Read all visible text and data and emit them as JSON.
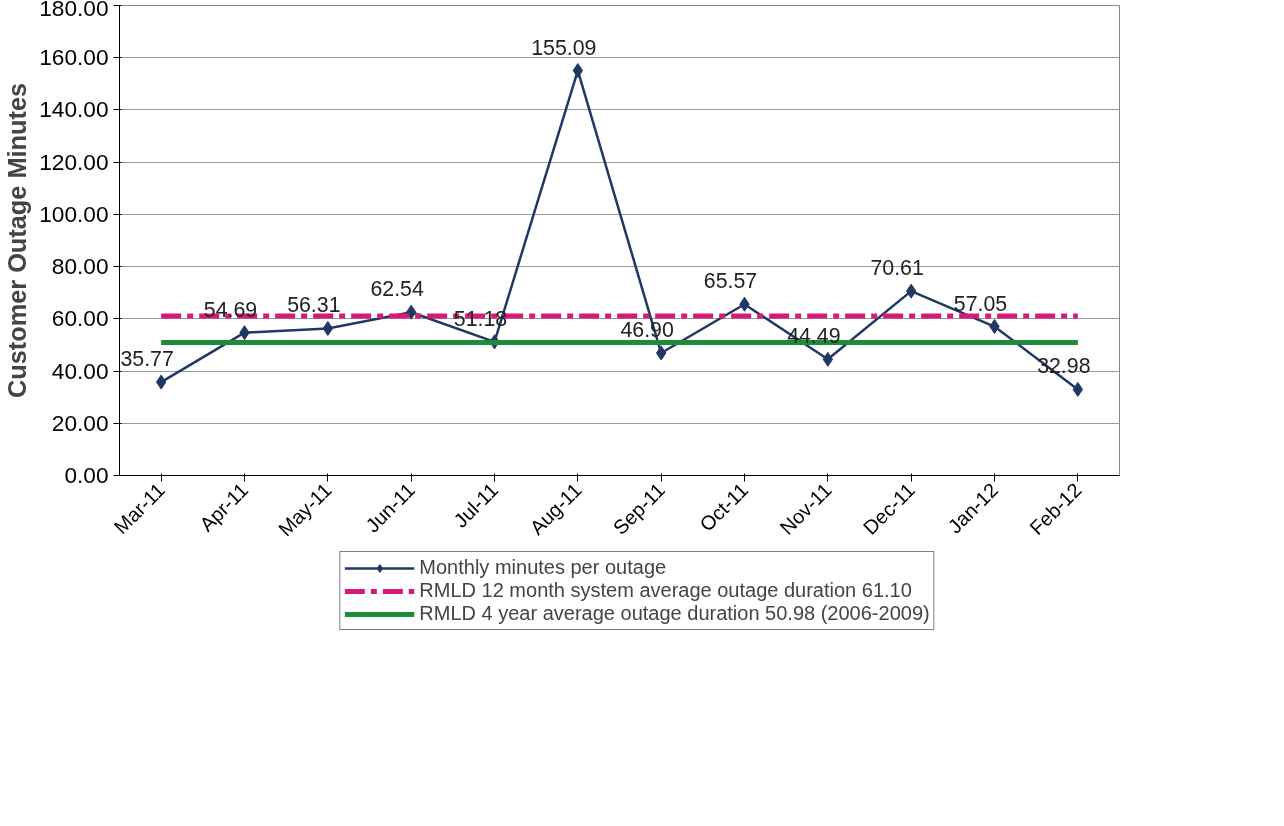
{
  "chart_data": {
    "type": "line",
    "ylabel": "Customer Outage Minutes",
    "categories": [
      "Mar-11",
      "Apr-11",
      "May-11",
      "Jun-11",
      "Jul-11",
      "Aug-11",
      "Sep-11",
      "Oct-11",
      "Nov-11",
      "Dec-11",
      "Jan-12",
      "Feb-12"
    ],
    "series": [
      {
        "name": "Monthly minutes per outage",
        "color": "#1f3864",
        "marker": "diamond",
        "line_style": "solid",
        "values": [
          35.77,
          54.69,
          56.31,
          62.54,
          51.18,
          155.09,
          46.9,
          65.57,
          44.49,
          70.61,
          57.05,
          32.98
        ],
        "value_labels": [
          "35.77",
          "54.69",
          "56.31",
          "62.54",
          "51.18",
          "155.09",
          "46.90",
          "65.57",
          "44.49",
          "70.61",
          "57.05",
          "32.98"
        ]
      },
      {
        "name": "RMLD 12 month system average outage duration 61.10",
        "color": "#d6197a",
        "marker": "none",
        "line_style": "dashed",
        "values": [
          61.1,
          61.1,
          61.1,
          61.1,
          61.1,
          61.1,
          61.1,
          61.1,
          61.1,
          61.1,
          61.1,
          61.1
        ]
      },
      {
        "name": "RMLD 4 year average outage duration 50.98 (2006-2009)",
        "color": "#1e8a3c",
        "marker": "none",
        "line_style": "solid",
        "values": [
          50.98,
          50.98,
          50.98,
          50.98,
          50.98,
          50.98,
          50.98,
          50.98,
          50.98,
          50.98,
          50.98,
          50.98
        ]
      }
    ],
    "ylim": [
      0,
      180
    ],
    "yticks": [
      {
        "value": 0,
        "label": "0.00"
      },
      {
        "value": 20,
        "label": "20.00"
      },
      {
        "value": 40,
        "label": "40.00"
      },
      {
        "value": 60,
        "label": "60.00"
      },
      {
        "value": 80,
        "label": "80.00"
      },
      {
        "value": 100,
        "label": "100.00"
      },
      {
        "value": 120,
        "label": "120.00"
      },
      {
        "value": 140,
        "label": "140.00"
      },
      {
        "value": 160,
        "label": "160.00"
      },
      {
        "value": 180,
        "label": "180.00"
      }
    ],
    "grid": "y",
    "legend": "bottom"
  }
}
